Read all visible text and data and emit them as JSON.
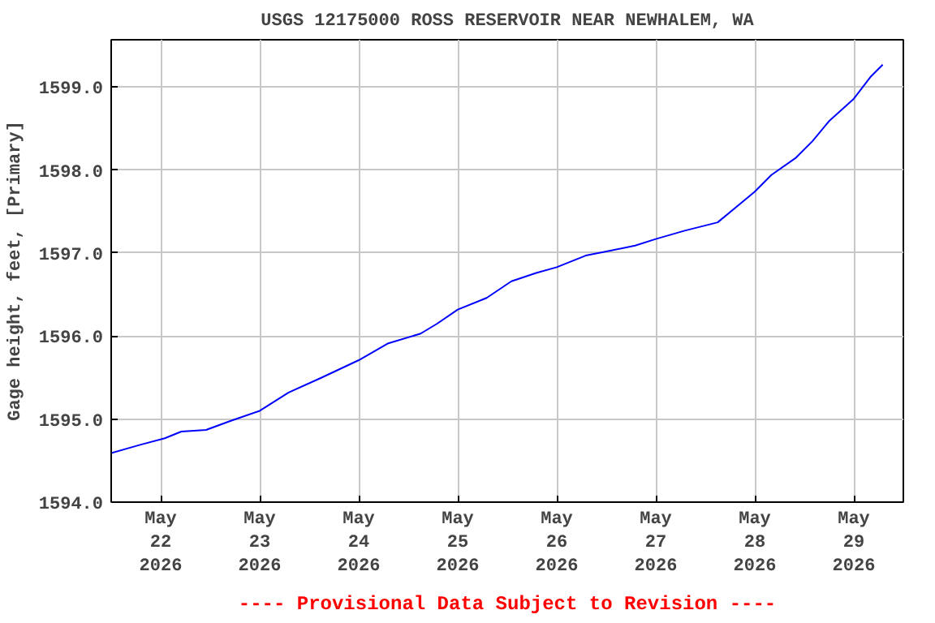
{
  "chart_data": {
    "type": "line",
    "title": "USGS 12175000 ROSS RESERVOIR NEAR NEWHALEM, WA",
    "ylabel": "Gage height, feet, [Primary]",
    "x": [
      "2026-05-21T12:00",
      "2026-05-21T19:00",
      "2026-05-22T01:00",
      "2026-05-22T05:00",
      "2026-05-22T11:00",
      "2026-05-22T17:00",
      "2026-05-23T00:00",
      "2026-05-23T07:00",
      "2026-05-23T15:00",
      "2026-05-24T00:00",
      "2026-05-24T07:00",
      "2026-05-24T15:00",
      "2026-05-24T19:00",
      "2026-05-25T00:00",
      "2026-05-25T07:00",
      "2026-05-25T13:00",
      "2026-05-25T19:00",
      "2026-05-26T00:00",
      "2026-05-26T07:00",
      "2026-05-26T13:00",
      "2026-05-26T19:00",
      "2026-05-27T00:00",
      "2026-05-27T07:00",
      "2026-05-27T15:00",
      "2026-05-28T00:00",
      "2026-05-28T04:00",
      "2026-05-28T10:00",
      "2026-05-28T14:00",
      "2026-05-28T18:00",
      "2026-05-29T00:00",
      "2026-05-29T04:00",
      "2026-05-29T07:00"
    ],
    "series": [
      {
        "color": "#0000ff",
        "values": [
          1594.59,
          1594.69,
          1594.77,
          1594.85,
          1594.87,
          1594.98,
          1595.1,
          1595.32,
          1595.5,
          1595.71,
          1595.91,
          1596.03,
          1596.15,
          1596.32,
          1596.46,
          1596.66,
          1596.76,
          1596.83,
          1596.97,
          1597.03,
          1597.09,
          1597.17,
          1597.27,
          1597.37,
          1597.74,
          1597.94,
          1598.15,
          1598.35,
          1598.59,
          1598.86,
          1599.12,
          1599.27
        ]
      }
    ],
    "xlim": [
      "2026-05-21T12:00",
      "2026-05-29T12:00"
    ],
    "xticks": [
      {
        "value": "2026-05-22",
        "label": "May\n22\n2026"
      },
      {
        "value": "2026-05-23",
        "label": "May\n23\n2026"
      },
      {
        "value": "2026-05-24",
        "label": "May\n24\n2026"
      },
      {
        "value": "2026-05-25",
        "label": "May\n25\n2026"
      },
      {
        "value": "2026-05-26",
        "label": "May\n26\n2026"
      },
      {
        "value": "2026-05-27",
        "label": "May\n27\n2026"
      },
      {
        "value": "2026-05-28",
        "label": "May\n28\n2026"
      },
      {
        "value": "2026-05-29",
        "label": "May\n29\n2026"
      }
    ],
    "ylim": [
      1594.0,
      1599.57
    ],
    "yticks": [
      {
        "value": 1594,
        "label": "1594.0"
      },
      {
        "value": 1595,
        "label": "1595.0"
      },
      {
        "value": 1596,
        "label": "1596.0"
      },
      {
        "value": 1597,
        "label": "1597.0"
      },
      {
        "value": 1598,
        "label": "1598.0"
      },
      {
        "value": 1599,
        "label": "1599.0"
      }
    ],
    "grid": true,
    "annotations": [
      "---- Provisional Data Subject to Revision ----"
    ]
  }
}
